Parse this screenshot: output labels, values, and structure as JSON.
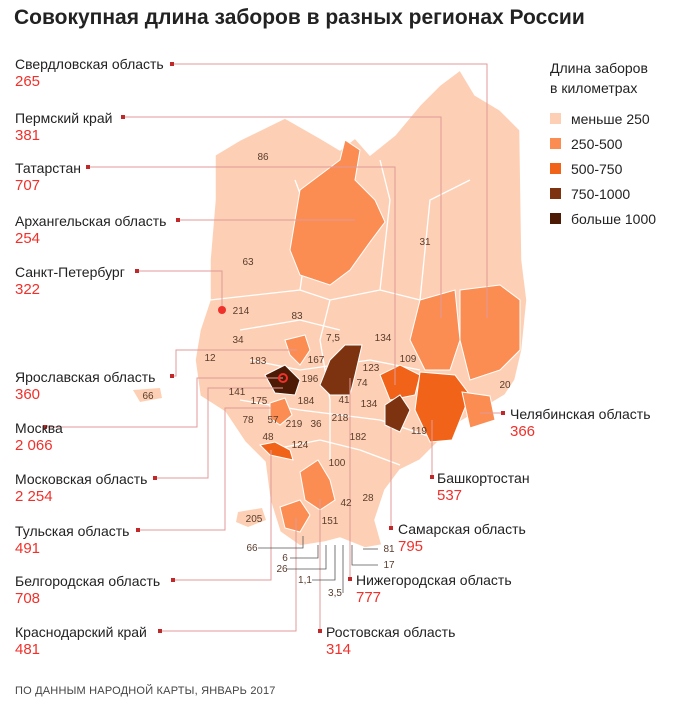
{
  "title": "Совокупная длина заборов в разных регионах России",
  "legend": {
    "title_line1": "Длина заборов",
    "title_line2": "в километрах",
    "items": [
      {
        "label": "меньше 250",
        "color": "#fdd0b5"
      },
      {
        "label": "250-500",
        "color": "#fb8c52"
      },
      {
        "label": "500-750",
        "color": "#f2631a"
      },
      {
        "label": "750-1000",
        "color": "#7e3310"
      },
      {
        "label": "больше 1000",
        "color": "#4c1a05"
      }
    ]
  },
  "callouts": [
    {
      "name": "Свердловская область",
      "value": "265"
    },
    {
      "name": "Пермский край",
      "value": "381"
    },
    {
      "name": "Татарстан",
      "value": "707"
    },
    {
      "name": "Архангельская область",
      "value": "254"
    },
    {
      "name": "Санкт-Петербург",
      "value": "322"
    },
    {
      "name": "Ярославская область",
      "value": "360"
    },
    {
      "name": "Москва",
      "value": "2 066"
    },
    {
      "name": "Московская область",
      "value": "2 254"
    },
    {
      "name": "Тульская область",
      "value": "491"
    },
    {
      "name": "Белгородская область",
      "value": "708"
    },
    {
      "name": "Краснодарский край",
      "value": "481"
    },
    {
      "name": "Челябинская область",
      "value": "366"
    },
    {
      "name": "Башкортостан",
      "value": "537"
    },
    {
      "name": "Самарская область",
      "value": "795"
    },
    {
      "name": "Нижегородская область",
      "value": "777"
    },
    {
      "name": "Ростовская область",
      "value": "314"
    }
  ],
  "map_values": [
    "86",
    "31",
    "63",
    "214",
    "83",
    "34",
    "12",
    "183",
    "7,5",
    "134",
    "167",
    "109",
    "196",
    "123",
    "20",
    "141",
    "74",
    "175",
    "184",
    "41",
    "134",
    "78",
    "57",
    "219",
    "36",
    "218",
    "119",
    "48",
    "124",
    "182",
    "100",
    "28",
    "42",
    "205",
    "151",
    "66",
    "66",
    "6",
    "26",
    "1,1",
    "3,5",
    "81",
    "17"
  ],
  "source": "ПО ДАННЫМ НАРОДНОЙ КАРТЫ, ЯНВАРЬ 2017"
}
